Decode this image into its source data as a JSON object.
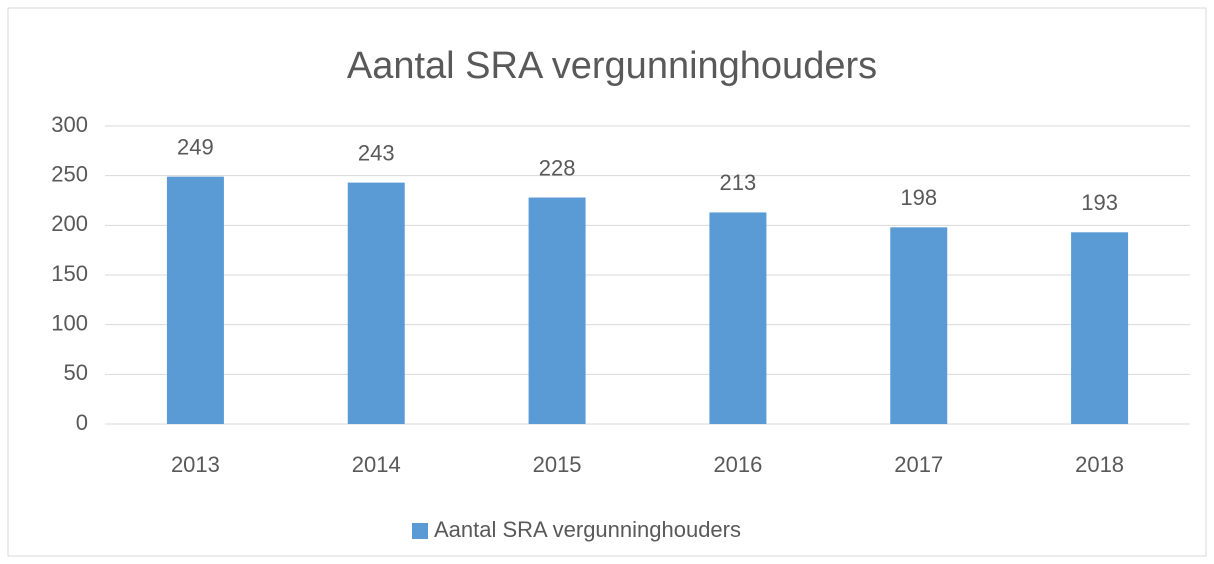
{
  "chart_data": {
    "type": "bar",
    "title": "Aantal SRA vergunninghouders",
    "categories": [
      "2013",
      "2014",
      "2015",
      "2016",
      "2017",
      "2018"
    ],
    "series": [
      {
        "name": "Aantal SRA vergunninghouders",
        "color": "#5b9bd5",
        "values": [
          249,
          243,
          228,
          213,
          198,
          193
        ]
      }
    ],
    "ylim": [
      0,
      300
    ],
    "yticks": [
      0,
      50,
      100,
      150,
      200,
      250,
      300
    ],
    "grid": true,
    "legend": "bottom"
  }
}
